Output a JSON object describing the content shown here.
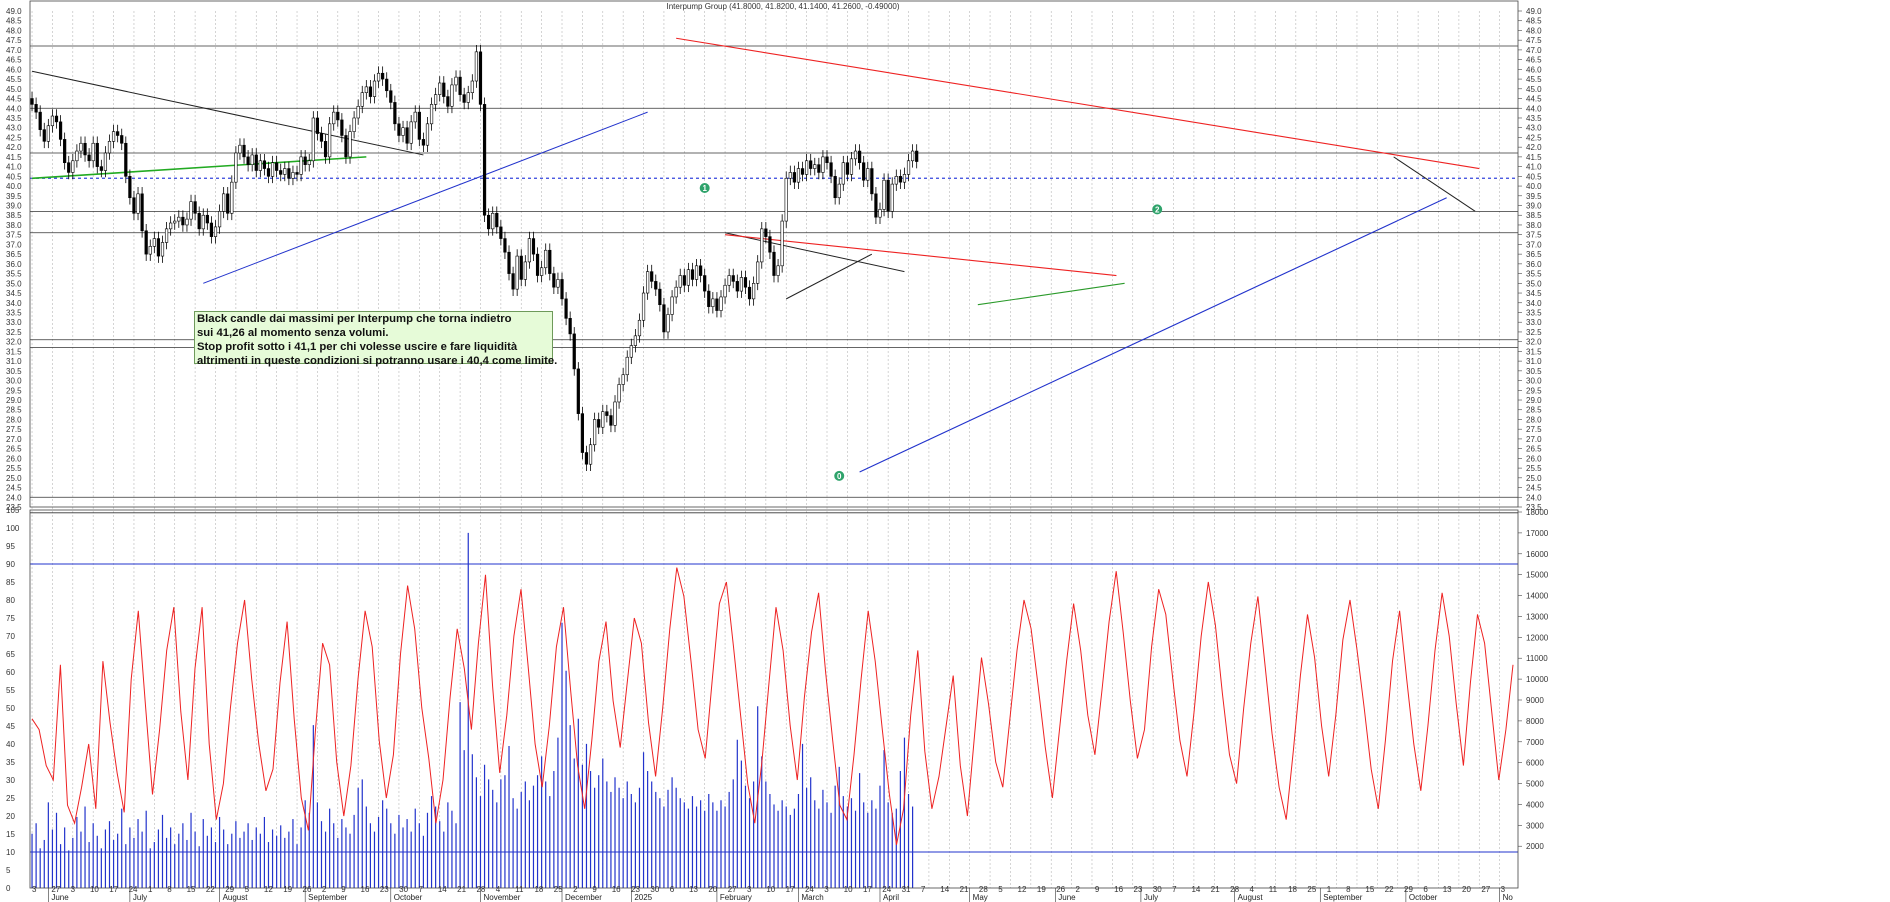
{
  "chart_data": {
    "type": "candlestick",
    "title": "Interpump Group (41.8000, 41.8200, 41.1400, 41.2600, -0.49000)",
    "price_axis": {
      "min": 23.5,
      "max": 49.0,
      "step": 0.5
    },
    "osc_axis": {
      "min": 0,
      "max": 105,
      "step": 5,
      "ticks": [
        "0",
        "5",
        "10",
        "15",
        "20",
        "25",
        "30",
        "35",
        "40",
        "45",
        "50",
        "55",
        "60",
        "65",
        "70",
        "75",
        "80",
        "85",
        "90",
        "95",
        "100",
        "105"
      ]
    },
    "volume_axis": {
      "min": 0,
      "max": 18000,
      "ticks": [
        "2000",
        "3000",
        "4000",
        "5000",
        "6000",
        "7000",
        "8000",
        "9000",
        "10000",
        "11000",
        "12000",
        "13000",
        "14000",
        "15000",
        "16000",
        "17000",
        "18000"
      ]
    },
    "months": [
      {
        "label": "June",
        "day_index": 4
      },
      {
        "label": "July",
        "day_index": 24
      },
      {
        "label": "August",
        "day_index": 46
      },
      {
        "label": "September",
        "day_index": 67
      },
      {
        "label": "October",
        "day_index": 88
      },
      {
        "label": "November",
        "day_index": 110
      },
      {
        "label": "December",
        "day_index": 130
      },
      {
        "label": "2025",
        "day_index": 147
      },
      {
        "label": "February",
        "day_index": 168
      },
      {
        "label": "March",
        "day_index": 188
      },
      {
        "label": "April",
        "day_index": 208
      },
      {
        "label": "May",
        "day_index": 230
      },
      {
        "label": "June",
        "day_index": 251
      },
      {
        "label": "July",
        "day_index": 272
      },
      {
        "label": "August",
        "day_index": 295
      },
      {
        "label": "September",
        "day_index": 316
      },
      {
        "label": "October",
        "day_index": 337
      },
      {
        "label": "No",
        "day_index": 360
      }
    ],
    "day_ticks": [
      "3",
      "27",
      "3",
      "10",
      "17",
      "24",
      "1",
      "8",
      "15",
      "22",
      "29",
      "5",
      "12",
      "19",
      "26",
      "2",
      "9",
      "16",
      "23",
      "30",
      "7",
      "14",
      "21",
      "28",
      "4",
      "11",
      "18",
      "25",
      "2",
      "9",
      "16",
      "23",
      "30",
      "6",
      "13",
      "20",
      "27",
      "3",
      "10",
      "17",
      "24",
      "3",
      "10",
      "17",
      "24",
      "31",
      "7",
      "14",
      "21",
      "28",
      "5",
      "12",
      "19",
      "26",
      "2",
      "9",
      "16",
      "23",
      "30",
      "7",
      "14",
      "21",
      "28",
      "4",
      "11",
      "18",
      "25",
      "1",
      "8",
      "15",
      "22",
      "29",
      "6",
      "13",
      "20",
      "27",
      "3"
    ],
    "closes": [
      44.2,
      43.8,
      42.9,
      42.3,
      43.1,
      43.6,
      43.3,
      42.4,
      41.2,
      40.7,
      41.3,
      41.8,
      42.2,
      41.6,
      41.3,
      42.2,
      41.0,
      40.8,
      41.7,
      42.3,
      42.8,
      42.6,
      42.2,
      40.5,
      39.4,
      38.6,
      39.6,
      37.7,
      36.5,
      36.9,
      37.3,
      36.4,
      37.1,
      37.8,
      38.1,
      38.2,
      38.4,
      38.0,
      38.3,
      39.2,
      38.6,
      37.8,
      38.5,
      38.1,
      37.4,
      37.9,
      38.7,
      39.6,
      38.6,
      40.2,
      41.7,
      42.1,
      41.5,
      41.1,
      41.6,
      40.8,
      41.3,
      40.9,
      40.5,
      41.2,
      40.8,
      40.6,
      40.9,
      40.4,
      40.7,
      40.6,
      41.5,
      41.1,
      41.3,
      43.5,
      42.7,
      42.3,
      41.5,
      43.2,
      43.8,
      43.4,
      42.6,
      41.5,
      42.8,
      43.5,
      44.1,
      44.8,
      45.1,
      44.6,
      45.4,
      45.8,
      45.5,
      44.9,
      44.3,
      43.2,
      42.6,
      43.0,
      42.2,
      43.3,
      43.8,
      42.4,
      42.1,
      43.2,
      44.2,
      44.7,
      45.3,
      44.6,
      44.1,
      45.2,
      45.6,
      44.7,
      44.3,
      44.8,
      45.4,
      46.9,
      44.2,
      38.5,
      37.8,
      38.6,
      37.9,
      37.3,
      36.6,
      35.5,
      34.7,
      36.4,
      35.2,
      36.1,
      37.3,
      36.5,
      35.4,
      35.8,
      36.7,
      35.5,
      34.8,
      35.2,
      34.2,
      33.2,
      32.4,
      30.6,
      28.3,
      26.3,
      25.7,
      26.7,
      28.0,
      27.6,
      28.4,
      28.2,
      27.7,
      28.9,
      29.8,
      30.3,
      31.2,
      31.8,
      32.3,
      33.1,
      34.5,
      35.6,
      35.1,
      34.7,
      33.9,
      32.5,
      33.4,
      34.3,
      34.8,
      35.4,
      34.9,
      35.7,
      35.2,
      35.9,
      35.4,
      34.6,
      33.8,
      34.2,
      33.6,
      34.3,
      34.9,
      35.4,
      35.1,
      34.6,
      35.3,
      34.8,
      34.2,
      35.0,
      36.1,
      37.8,
      37.4,
      36.6,
      35.4,
      35.9,
      38.2,
      40.4,
      40.7,
      40.2,
      40.9,
      40.6,
      41.3,
      40.9,
      41.1,
      40.7,
      41.5,
      41.2,
      40.5,
      39.4,
      40.1,
      41.2,
      40.6,
      41.4,
      41.8,
      41.2,
      40.3,
      40.9,
      39.6,
      38.4,
      38.8,
      40.3,
      38.7,
      40.1,
      40.5,
      40.2,
      40.6,
      41.3,
      41.8,
      41.26
    ],
    "oscillator": [
      47,
      44,
      34,
      30,
      62,
      23,
      18,
      28,
      40,
      22,
      63,
      46,
      32,
      21,
      58,
      77,
      51,
      26,
      44,
      66,
      78,
      49,
      30,
      61,
      78,
      40,
      19,
      29,
      50,
      68,
      80,
      58,
      40,
      27,
      33,
      57,
      74,
      47,
      25,
      16,
      44,
      68,
      62,
      35,
      20,
      34,
      58,
      77,
      67,
      41,
      25,
      37,
      65,
      84,
      72,
      50,
      36,
      18,
      30,
      53,
      72,
      61,
      44,
      68,
      87,
      56,
      32,
      48,
      70,
      83,
      62,
      40,
      28,
      45,
      67,
      78,
      55,
      34,
      22,
      41,
      63,
      74,
      52,
      39,
      57,
      75,
      68,
      46,
      31,
      50,
      72,
      89,
      81,
      63,
      44,
      36,
      58,
      79,
      85,
      67,
      48,
      29,
      18,
      35,
      57,
      78,
      66,
      45,
      30,
      53,
      71,
      82,
      60,
      41,
      23,
      19,
      37,
      58,
      77,
      63,
      44,
      26,
      12,
      22,
      48,
      66,
      38,
      22,
      31,
      45,
      59,
      34,
      20,
      42,
      64,
      51,
      35,
      28,
      47,
      66,
      80,
      72,
      56,
      39,
      25,
      44,
      63,
      79,
      66,
      48,
      37,
      55,
      74,
      88,
      71,
      52,
      36,
      44,
      67,
      83,
      76,
      58,
      41,
      31,
      49,
      70,
      85,
      73,
      54,
      37,
      29,
      50,
      68,
      81,
      62,
      43,
      28,
      19,
      38,
      59,
      76,
      64,
      45,
      31,
      48,
      69,
      80,
      66,
      50,
      33,
      22,
      41,
      63,
      77,
      58,
      40,
      27,
      45,
      66,
      82,
      70,
      51,
      34,
      57,
      76,
      68,
      49,
      30,
      44,
      62
    ],
    "volumes": [
      2600,
      3100,
      1900,
      2300,
      4100,
      2800,
      3600,
      2100,
      2900,
      1800,
      2400,
      3400,
      2700,
      3900,
      2200,
      3100,
      2500,
      1900,
      2800,
      3200,
      2300,
      2600,
      3800,
      2100,
      2900,
      2400,
      3300,
      2700,
      3700,
      1900,
      2200,
      2800,
      3500,
      2400,
      2900,
      2100,
      2600,
      3100,
      2300,
      3600,
      2700,
      2000,
      3300,
      2500,
      2900,
      2200,
      3400,
      2800,
      2100,
      2600,
      3200,
      2400,
      2700,
      3100,
      2300,
      2900,
      2600,
      3400,
      2200,
      2800,
      2500,
      3000,
      2400,
      2700,
      3300,
      2100,
      2900,
      4200,
      3600,
      7800,
      4100,
      3200,
      2700,
      3800,
      3100,
      2400,
      3300,
      2900,
      2600,
      3500,
      4800,
      5200,
      3900,
      3100,
      2700,
      3400,
      4200,
      3800,
      3100,
      2600,
      3500,
      2900,
      3300,
      2700,
      3800,
      3100,
      2500,
      3600,
      4400,
      3900,
      3200,
      2700,
      4100,
      3700,
      3100,
      8900,
      6600,
      17000,
      6400,
      5300,
      4400,
      5900,
      5200,
      4700,
      4100,
      5200,
      5400,
      6800,
      4300,
      3800,
      4600,
      5100,
      4200,
      4900,
      5400,
      6300,
      5100,
      4400,
      5600,
      7200,
      12700,
      10400,
      7800,
      6200,
      8100,
      5900,
      6900,
      5600,
      4800,
      5400,
      6200,
      5100,
      4600,
      5300,
      4800,
      4300,
      5100,
      4500,
      4100,
      4800,
      6500,
      5600,
      5100,
      4600,
      4300,
      3900,
      4700,
      5300,
      4800,
      4300,
      4100,
      3800,
      4400,
      3900,
      4200,
      3700,
      4500,
      4100,
      3700,
      4200,
      3900,
      4600,
      5200,
      7100,
      6100,
      4900,
      4300,
      5100,
      8700,
      6300,
      5100,
      4500,
      4000,
      3700,
      4200,
      3900,
      3500,
      3800,
      4500,
      6900,
      4800,
      5300,
      4200,
      3800,
      4700,
      4100,
      3600,
      4900,
      5800,
      4400,
      3900,
      4300,
      3700,
      5500,
      4100,
      3600,
      4200,
      3800,
      4900,
      6600,
      4100,
      3600,
      3800,
      5600,
      7200,
      4500,
      3900
    ]
  },
  "annotation": {
    "lines": [
      "Black candle dai massimi per Interpump che torna indietro",
      "sui 41,26 al momento senza volumi.",
      "Stop profit sotto i 41,1 per chi volesse uscire e fare liquidità",
      "altrimenti in queste condizioni si potranno usare i 40,4 come limite."
    ]
  },
  "markers": [
    {
      "label": "1",
      "day_index": 165,
      "price": 39.9,
      "color": "#2fa36b"
    },
    {
      "label": "2",
      "day_index": 276,
      "price": 38.8,
      "color": "#2fa36b"
    },
    {
      "label": "0",
      "day_index": 198,
      "price": 25.1,
      "color": "#2fa36b"
    }
  ],
  "colors": {
    "up_candle": "#ffffff",
    "down_candle": "#000000",
    "grid": "#b8b8b8",
    "trend_black": "#222222",
    "trend_red": "#ee2222",
    "trend_blue": "#2233cc",
    "trend_green": "#22aa22",
    "support_dotted": "#3344dd",
    "oscillator": "#ee2222",
    "volume": "#2233cc"
  }
}
